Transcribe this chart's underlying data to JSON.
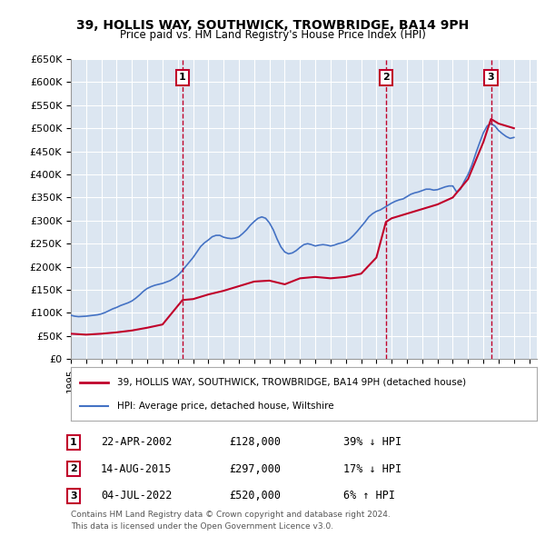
{
  "title": "39, HOLLIS WAY, SOUTHWICK, TROWBRIDGE, BA14 9PH",
  "subtitle": "Price paid vs. HM Land Registry's House Price Index (HPI)",
  "ylabel": "",
  "ylim": [
    0,
    650000
  ],
  "yticks": [
    0,
    50000,
    100000,
    150000,
    200000,
    250000,
    300000,
    350000,
    400000,
    450000,
    500000,
    550000,
    600000,
    650000
  ],
  "ytick_labels": [
    "£0",
    "£50K",
    "£100K",
    "£150K",
    "£200K",
    "£250K",
    "£300K",
    "£350K",
    "£400K",
    "£450K",
    "£500K",
    "£550K",
    "£600K",
    "£650K"
  ],
  "xlim_start": 1995.0,
  "xlim_end": 2025.5,
  "background_color": "#dce6f1",
  "plot_bg_color": "#dce6f1",
  "grid_color": "#ffffff",
  "hpi_color": "#4472c4",
  "price_color": "#c0002a",
  "transactions": [
    {
      "num": 1,
      "date": "22-APR-2002",
      "price": 128000,
      "pct": "39%",
      "dir": "↓",
      "year": 2002.31
    },
    {
      "num": 2,
      "date": "14-AUG-2015",
      "price": 297000,
      "pct": "17%",
      "dir": "↓",
      "year": 2015.62
    },
    {
      "num": 3,
      "date": "04-JUL-2022",
      "price": 520000,
      "pct": "6%",
      "dir": "↑",
      "year": 2022.5
    }
  ],
  "legend_line1": "39, HOLLIS WAY, SOUTHWICK, TROWBRIDGE, BA14 9PH (detached house)",
  "legend_line2": "HPI: Average price, detached house, Wiltshire",
  "footer1": "Contains HM Land Registry data © Crown copyright and database right 2024.",
  "footer2": "This data is licensed under the Open Government Licence v3.0.",
  "hpi_data_x": [
    1995.0,
    1995.25,
    1995.5,
    1995.75,
    1996.0,
    1996.25,
    1996.5,
    1996.75,
    1997.0,
    1997.25,
    1997.5,
    1997.75,
    1998.0,
    1998.25,
    1998.5,
    1998.75,
    1999.0,
    1999.25,
    1999.5,
    1999.75,
    2000.0,
    2000.25,
    2000.5,
    2000.75,
    2001.0,
    2001.25,
    2001.5,
    2001.75,
    2002.0,
    2002.25,
    2002.5,
    2002.75,
    2003.0,
    2003.25,
    2003.5,
    2003.75,
    2004.0,
    2004.25,
    2004.5,
    2004.75,
    2005.0,
    2005.25,
    2005.5,
    2005.75,
    2006.0,
    2006.25,
    2006.5,
    2006.75,
    2007.0,
    2007.25,
    2007.5,
    2007.75,
    2008.0,
    2008.25,
    2008.5,
    2008.75,
    2009.0,
    2009.25,
    2009.5,
    2009.75,
    2010.0,
    2010.25,
    2010.5,
    2010.75,
    2011.0,
    2011.25,
    2011.5,
    2011.75,
    2012.0,
    2012.25,
    2012.5,
    2012.75,
    2013.0,
    2013.25,
    2013.5,
    2013.75,
    2014.0,
    2014.25,
    2014.5,
    2014.75,
    2015.0,
    2015.25,
    2015.5,
    2015.75,
    2016.0,
    2016.25,
    2016.5,
    2016.75,
    2017.0,
    2017.25,
    2017.5,
    2017.75,
    2018.0,
    2018.25,
    2018.5,
    2018.75,
    2019.0,
    2019.25,
    2019.5,
    2019.75,
    2020.0,
    2020.25,
    2020.5,
    2020.75,
    2021.0,
    2021.25,
    2021.5,
    2021.75,
    2022.0,
    2022.25,
    2022.5,
    2022.75,
    2023.0,
    2023.25,
    2023.5,
    2023.75,
    2024.0
  ],
  "hpi_data_y": [
    95000,
    93000,
    92000,
    92500,
    93000,
    94000,
    95000,
    96000,
    98000,
    101000,
    105000,
    109000,
    112000,
    116000,
    119000,
    122000,
    126000,
    132000,
    139000,
    147000,
    153000,
    157000,
    160000,
    162000,
    164000,
    167000,
    170000,
    175000,
    181000,
    190000,
    200000,
    210000,
    220000,
    232000,
    244000,
    252000,
    258000,
    265000,
    268000,
    268000,
    264000,
    262000,
    261000,
    262000,
    265000,
    272000,
    280000,
    290000,
    298000,
    305000,
    308000,
    305000,
    295000,
    280000,
    260000,
    243000,
    232000,
    228000,
    230000,
    235000,
    242000,
    248000,
    250000,
    248000,
    245000,
    247000,
    248000,
    247000,
    245000,
    247000,
    250000,
    252000,
    255000,
    260000,
    268000,
    277000,
    287000,
    297000,
    308000,
    315000,
    320000,
    323000,
    328000,
    333000,
    338000,
    342000,
    345000,
    347000,
    352000,
    357000,
    360000,
    362000,
    365000,
    368000,
    368000,
    366000,
    367000,
    370000,
    373000,
    375000,
    375000,
    362000,
    368000,
    385000,
    400000,
    420000,
    445000,
    468000,
    490000,
    505000,
    510000,
    505000,
    495000,
    488000,
    482000,
    478000,
    480000
  ],
  "price_data_x": [
    1995.0,
    1996.0,
    1997.0,
    1998.0,
    1999.0,
    2000.0,
    2001.0,
    2002.31,
    2003.0,
    2004.0,
    2005.0,
    2006.0,
    2007.0,
    2008.0,
    2009.0,
    2010.0,
    2011.0,
    2012.0,
    2013.0,
    2014.0,
    2015.0,
    2015.62,
    2016.0,
    2017.0,
    2018.0,
    2019.0,
    2020.0,
    2021.0,
    2022.0,
    2022.5,
    2023.0,
    2024.0
  ],
  "price_data_y": [
    55000,
    53000,
    55000,
    58000,
    62000,
    68000,
    75000,
    128000,
    130000,
    140000,
    148000,
    158000,
    168000,
    170000,
    162000,
    175000,
    178000,
    175000,
    178000,
    185000,
    220000,
    297000,
    305000,
    315000,
    325000,
    335000,
    350000,
    390000,
    470000,
    520000,
    510000,
    500000
  ]
}
